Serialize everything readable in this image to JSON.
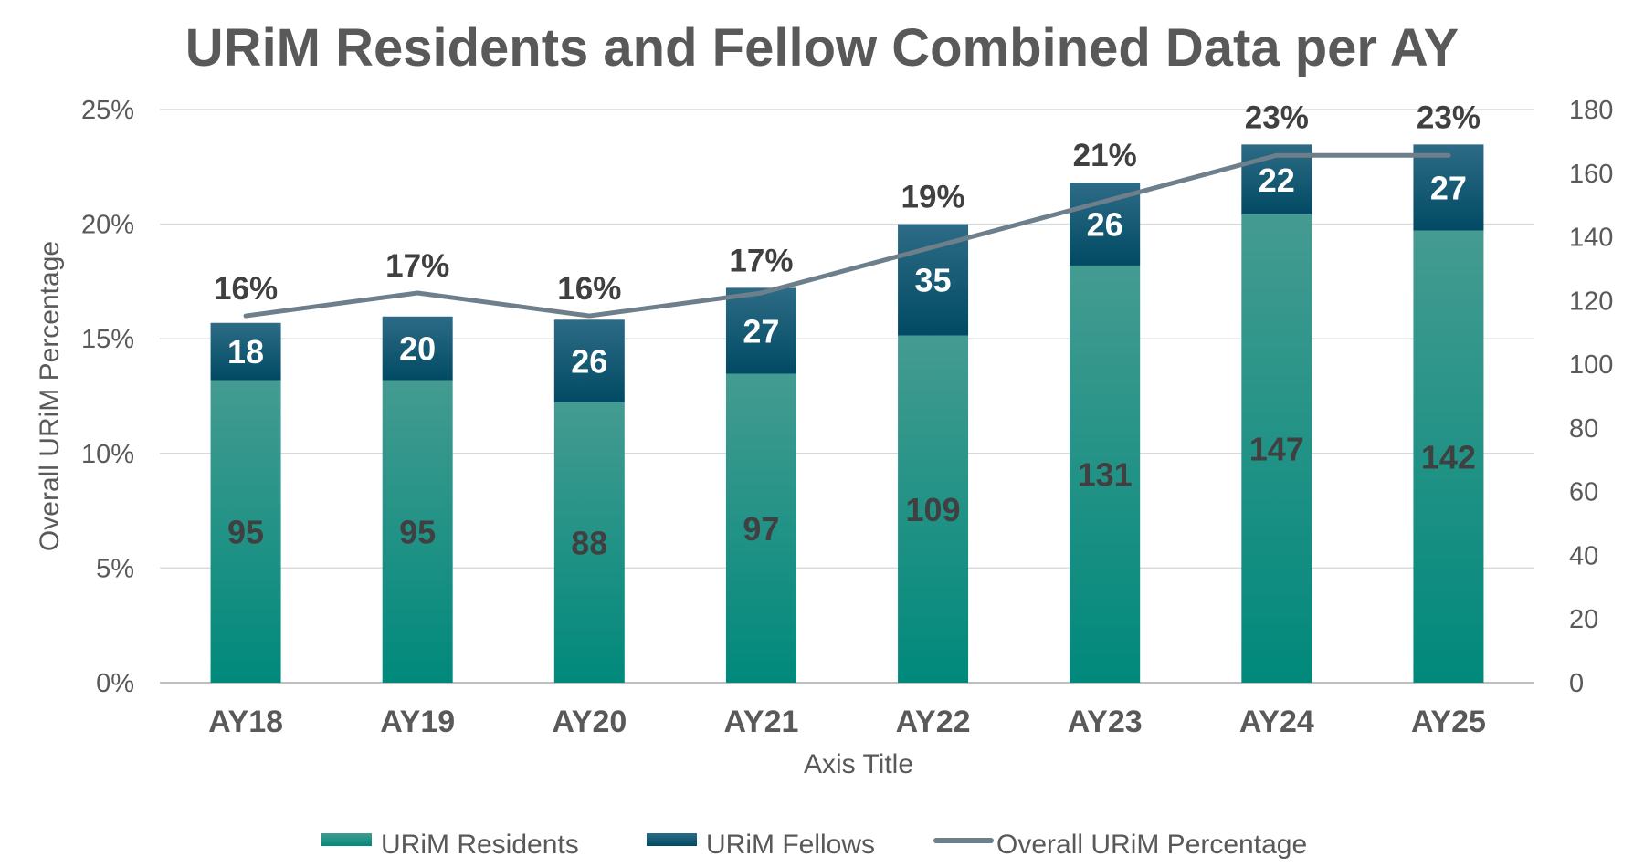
{
  "chart_data": {
    "type": "bar",
    "stacked": true,
    "title": "URiM Residents and Fellow Combined Data per AY",
    "xlabel": "Axis Title",
    "ylabel": "Overall URiM Percentage",
    "categories": [
      "AY18",
      "AY19",
      "AY20",
      "AY21",
      "AY22",
      "AY23",
      "AY24",
      "AY25"
    ],
    "series": [
      {
        "name": "URiM Residents",
        "type": "bar",
        "axis": "secondary",
        "color": "#1a8c80",
        "values": [
          95,
          95,
          88,
          97,
          109,
          131,
          147,
          142
        ]
      },
      {
        "name": "URiM Fellows",
        "type": "bar",
        "axis": "secondary",
        "color": "#0d4a66",
        "values": [
          18,
          20,
          26,
          27,
          35,
          26,
          22,
          27
        ]
      },
      {
        "name": "Overall URiM Percentage",
        "type": "line",
        "axis": "primary",
        "color": "#6e7f8c",
        "values": [
          16,
          17,
          16,
          17,
          19,
          21,
          23,
          23
        ],
        "labels": [
          "16%",
          "17%",
          "16%",
          "17%",
          "19%",
          "21%",
          "23%",
          "23%"
        ]
      }
    ],
    "y_left": {
      "ylim": [
        0,
        25
      ],
      "ticks": [
        "0%",
        "5%",
        "10%",
        "15%",
        "20%",
        "25%"
      ]
    },
    "y_right": {
      "ylim": [
        0,
        180
      ],
      "ticks": [
        "0",
        "20",
        "40",
        "60",
        "80",
        "100",
        "120",
        "140",
        "160",
        "180"
      ]
    },
    "grid": true,
    "legend": "bottom"
  }
}
